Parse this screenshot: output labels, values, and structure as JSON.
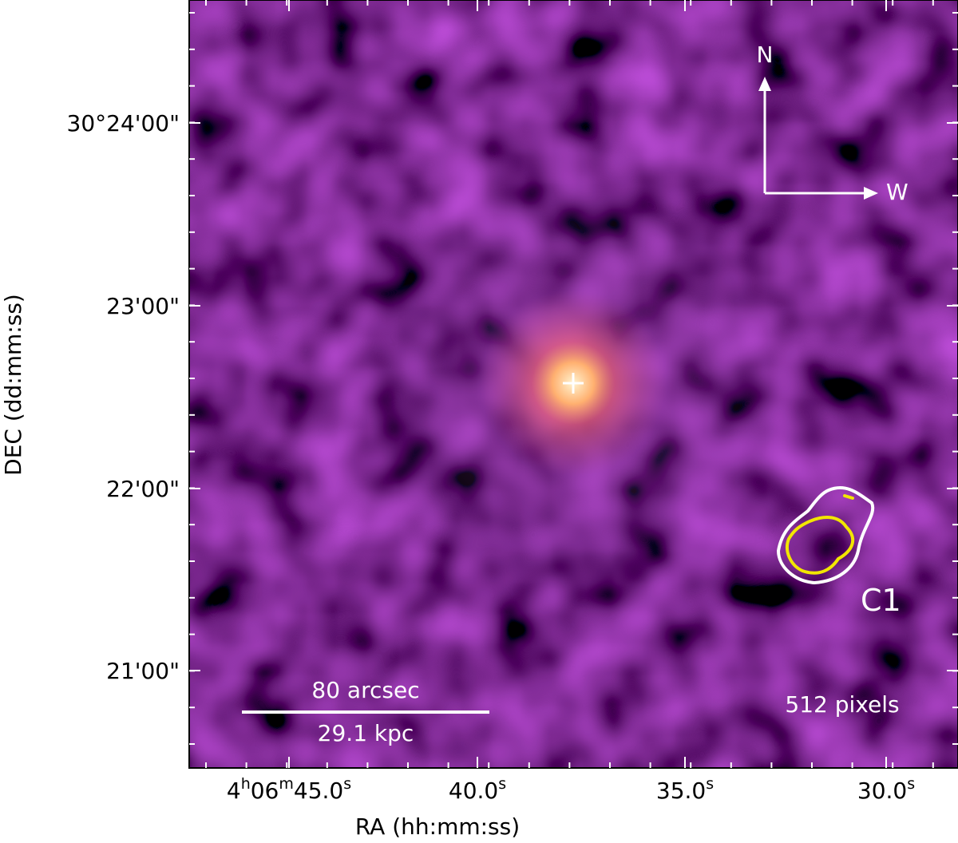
{
  "x_axis": {
    "label": "RA (hh:mm:ss)",
    "ticks": [
      [
        "4",
        "h",
        "06",
        "m",
        "45.0",
        "s"
      ],
      [
        "40.0",
        "s"
      ],
      [
        "35.0",
        "s"
      ],
      [
        "30.0",
        "s"
      ]
    ]
  },
  "y_axis": {
    "label": "DEC (dd:mm:ss)",
    "ticks": [
      "30°24'00\"",
      "23'00\"",
      "22'00\"",
      "21'00\""
    ]
  },
  "annotations": {
    "north": "N",
    "west": "W",
    "region": "C1",
    "scale_angle": "80 arcsec",
    "scale_length": "29.1 kpc",
    "resolution": "512 pixels"
  }
}
